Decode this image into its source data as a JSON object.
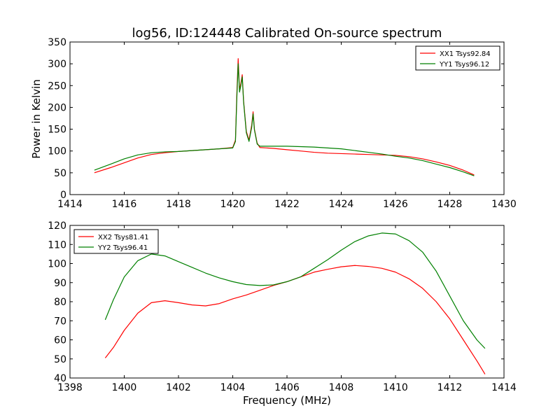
{
  "chart_data": [
    {
      "type": "line",
      "title": "log56, ID:124448 Calibrated On-source spectrum",
      "xlabel": "",
      "ylabel": "Power in Kelvin",
      "xlim": [
        1414,
        1430
      ],
      "ylim": [
        0,
        350
      ],
      "xticks": [
        1414,
        1416,
        1418,
        1420,
        1422,
        1424,
        1426,
        1428,
        1430
      ],
      "yticks": [
        0,
        50,
        100,
        150,
        200,
        250,
        300,
        350
      ],
      "grid": false,
      "legend_position": "top-right",
      "series": [
        {
          "name": "XX1 Tsys92.84",
          "color": "#ff0000",
          "x": [
            1414.9,
            1415.5,
            1416.0,
            1416.5,
            1417.0,
            1417.5,
            1418.0,
            1418.5,
            1419.0,
            1419.5,
            1420.0,
            1420.1,
            1420.15,
            1420.2,
            1420.25,
            1420.3,
            1420.35,
            1420.4,
            1420.5,
            1420.6,
            1420.7,
            1420.75,
            1420.8,
            1420.9,
            1421.0,
            1421.5,
            1422.0,
            1422.5,
            1423.0,
            1423.5,
            1424.0,
            1424.5,
            1425.0,
            1425.5,
            1426.0,
            1426.5,
            1427.0,
            1427.5,
            1428.0,
            1428.5,
            1428.9
          ],
          "y": [
            50,
            62,
            73,
            84,
            92,
            96,
            99,
            101,
            103,
            105,
            108,
            125,
            230,
            312,
            240,
            255,
            275,
            215,
            145,
            125,
            160,
            190,
            150,
            118,
            108,
            106,
            103,
            100,
            97,
            95,
            94,
            93,
            92,
            91,
            90,
            87,
            82,
            75,
            67,
            56,
            45
          ]
        },
        {
          "name": "YY1 Tsys96.12",
          "color": "#008000",
          "x": [
            1414.9,
            1415.5,
            1416.0,
            1416.5,
            1417.0,
            1417.5,
            1418.0,
            1418.5,
            1419.0,
            1419.5,
            1420.0,
            1420.1,
            1420.15,
            1420.2,
            1420.25,
            1420.3,
            1420.35,
            1420.4,
            1420.5,
            1420.6,
            1420.7,
            1420.75,
            1420.8,
            1420.9,
            1421.0,
            1421.5,
            1422.0,
            1422.5,
            1423.0,
            1423.5,
            1424.0,
            1424.5,
            1425.0,
            1425.5,
            1426.0,
            1426.5,
            1427.0,
            1427.5,
            1428.0,
            1428.5,
            1428.9
          ],
          "y": [
            56,
            70,
            82,
            91,
            96,
            98,
            99,
            101,
            103,
            105,
            107,
            122,
            220,
            300,
            235,
            250,
            270,
            212,
            142,
            122,
            155,
            185,
            148,
            116,
            111,
            111,
            111,
            110,
            109,
            107,
            105,
            101,
            97,
            93,
            88,
            84,
            78,
            70,
            62,
            52,
            43
          ]
        }
      ]
    },
    {
      "type": "line",
      "title": "",
      "xlabel": "Frequency (MHz)",
      "ylabel": "",
      "xlim": [
        1398,
        1414
      ],
      "ylim": [
        40,
        120
      ],
      "xticks": [
        1398,
        1400,
        1402,
        1404,
        1406,
        1408,
        1410,
        1412,
        1414
      ],
      "yticks": [
        40,
        50,
        60,
        70,
        80,
        90,
        100,
        110,
        120
      ],
      "grid": false,
      "legend_position": "top-left",
      "series": [
        {
          "name": "XX2 Tsys81.41",
          "color": "#ff0000",
          "x": [
            1399.3,
            1399.6,
            1400.0,
            1400.5,
            1401.0,
            1401.5,
            1402.0,
            1402.5,
            1403.0,
            1403.5,
            1404.0,
            1404.5,
            1405.0,
            1405.5,
            1406.0,
            1406.5,
            1407.0,
            1407.5,
            1408.0,
            1408.5,
            1409.0,
            1409.5,
            1410.0,
            1410.5,
            1411.0,
            1411.5,
            1412.0,
            1412.5,
            1413.0,
            1413.3
          ],
          "y": [
            50.5,
            56,
            65,
            74,
            79.5,
            80.5,
            79.5,
            78.3,
            77.8,
            79,
            81.5,
            83.5,
            86,
            88.5,
            90.5,
            93,
            95.5,
            97,
            98.3,
            99,
            98.5,
            97.5,
            95.5,
            92,
            87,
            80,
            71,
            60,
            49,
            42
          ]
        },
        {
          "name": "YY2 Tsys96.41",
          "color": "#008000",
          "x": [
            1399.3,
            1399.6,
            1400.0,
            1400.5,
            1401.0,
            1401.5,
            1402.0,
            1402.5,
            1403.0,
            1403.5,
            1404.0,
            1404.5,
            1405.0,
            1405.5,
            1406.0,
            1406.5,
            1407.0,
            1407.5,
            1408.0,
            1408.5,
            1409.0,
            1409.5,
            1410.0,
            1410.5,
            1411.0,
            1411.5,
            1412.0,
            1412.5,
            1413.0,
            1413.3
          ],
          "y": [
            70.5,
            81,
            93,
            101.5,
            105,
            104,
            101,
            98,
            95,
            92.5,
            90.5,
            89,
            88.5,
            88.8,
            90.5,
            93,
            97.5,
            102,
            107,
            111.5,
            114.5,
            116,
            115.5,
            112,
            106,
            96,
            83,
            70,
            60,
            55.5
          ]
        }
      ]
    }
  ]
}
